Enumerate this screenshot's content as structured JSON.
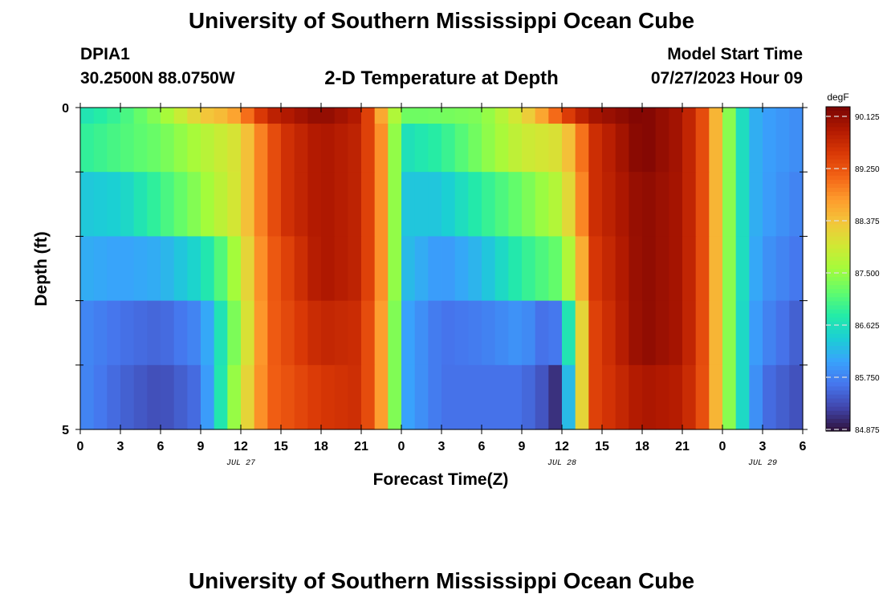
{
  "page": {
    "title": "University of Southern Mississippi Ocean Cube",
    "station_id": "DPIA1",
    "coordinates": "30.2500N  88.0750W",
    "plot_title": "2-D Temperature at Depth",
    "model_start_label": "Model Start Time",
    "model_start_value": "07/27/2023 Hour 09",
    "bottom_title": "University of Southern Mississippi Ocean Cube"
  },
  "chart_data": {
    "type": "heatmap",
    "title": "2-D Temperature at Depth",
    "xlabel": "Forecast Time(Z)",
    "ylabel": "Depth (ft)",
    "x_range_hours": [
      0,
      54
    ],
    "x_tick_labels": [
      "0",
      "3",
      "6",
      "9",
      "12",
      "15",
      "18",
      "21",
      "0",
      "3",
      "6",
      "9",
      "12",
      "15",
      "18",
      "21",
      "0",
      "3",
      "6"
    ],
    "date_labels": [
      {
        "label": "JUL 27",
        "hour": 12
      },
      {
        "label": "JUL 28",
        "hour": 36
      },
      {
        "label": "JUL 29",
        "hour": 51
      }
    ],
    "y_range_ft": [
      0,
      5
    ],
    "y_tick_labels": [
      "0",
      "5"
    ],
    "colorbar": {
      "unit": "degF",
      "min": 84.875,
      "max": 90.125,
      "tick_labels": [
        "90.125",
        "89.250",
        "88.375",
        "87.500",
        "86.625",
        "85.750",
        "84.875"
      ],
      "colors": [
        "#30123b",
        "#4145ab",
        "#4675ed",
        "#39a2fc",
        "#1bcfd4",
        "#24eca6",
        "#61fc6c",
        "#a4fc3b",
        "#d1e834",
        "#f3c63a",
        "#fe9b2d",
        "#f36315",
        "#d93806",
        "#b11901",
        "#7a0403"
      ]
    },
    "depth_layers_ft": [
      0,
      0.5,
      1.5,
      2.5,
      3.5,
      4.5
    ],
    "series": [
      {
        "name": "0 ft",
        "knots": [
          [
            0,
            86.6
          ],
          [
            3,
            86.9
          ],
          [
            6,
            87.4
          ],
          [
            9,
            88.2
          ],
          [
            11,
            88.4
          ],
          [
            12,
            88.7
          ],
          [
            14,
            89.6
          ],
          [
            18,
            90.0
          ],
          [
            21,
            89.7
          ],
          [
            22.5,
            88.5
          ],
          [
            23.5,
            87.6
          ],
          [
            24.5,
            87.2
          ],
          [
            26,
            87.2
          ],
          [
            30,
            87.3
          ],
          [
            33,
            88.0
          ],
          [
            35,
            88.7
          ],
          [
            36,
            89.2
          ],
          [
            38,
            89.8
          ],
          [
            42,
            90.1
          ],
          [
            45,
            89.8
          ],
          [
            47,
            89.0
          ],
          [
            48,
            87.8
          ],
          [
            49,
            86.9
          ],
          [
            50,
            86.2
          ],
          [
            51,
            86.0
          ],
          [
            54,
            85.8
          ]
        ]
      },
      {
        "name": "0.5 ft",
        "knots": [
          [
            0,
            86.8
          ],
          [
            3,
            87.0
          ],
          [
            6,
            87.2
          ],
          [
            9,
            87.6
          ],
          [
            12,
            88.0
          ],
          [
            13,
            88.6
          ],
          [
            15,
            89.4
          ],
          [
            18,
            89.8
          ],
          [
            21,
            89.6
          ],
          [
            22.5,
            88.7
          ],
          [
            23.5,
            87.4
          ],
          [
            24.5,
            86.6
          ],
          [
            27,
            86.8
          ],
          [
            30,
            87.3
          ],
          [
            33,
            87.8
          ],
          [
            36,
            88.0
          ],
          [
            37,
            88.6
          ],
          [
            38.5,
            89.5
          ],
          [
            42,
            90.1
          ],
          [
            45,
            89.8
          ],
          [
            47,
            89.0
          ],
          [
            48,
            87.8
          ],
          [
            49,
            86.9
          ],
          [
            50,
            86.2
          ],
          [
            51,
            86.0
          ],
          [
            54,
            85.8
          ]
        ]
      },
      {
        "name": "1.5 ft",
        "knots": [
          [
            0,
            86.3
          ],
          [
            3,
            86.4
          ],
          [
            6,
            86.9
          ],
          [
            9,
            87.4
          ],
          [
            12,
            88.0
          ],
          [
            13,
            88.6
          ],
          [
            15,
            89.4
          ],
          [
            18,
            89.8
          ],
          [
            21,
            89.6
          ],
          [
            22.5,
            88.7
          ],
          [
            23.5,
            87.4
          ],
          [
            24.5,
            86.3
          ],
          [
            27,
            86.3
          ],
          [
            30,
            86.8
          ],
          [
            33,
            87.2
          ],
          [
            36,
            87.7
          ],
          [
            37,
            88.4
          ],
          [
            38.5,
            89.5
          ],
          [
            42,
            90.0
          ],
          [
            45,
            89.8
          ],
          [
            47,
            89.0
          ],
          [
            48,
            87.8
          ],
          [
            49,
            86.9
          ],
          [
            50,
            86.2
          ],
          [
            51,
            86.0
          ],
          [
            54,
            85.7
          ]
        ]
      },
      {
        "name": "2.5 ft",
        "knots": [
          [
            0,
            86.1
          ],
          [
            3,
            86.0
          ],
          [
            6,
            86.1
          ],
          [
            9,
            86.5
          ],
          [
            11,
            87.2
          ],
          [
            12,
            87.8
          ],
          [
            14,
            89.0
          ],
          [
            18,
            89.8
          ],
          [
            21,
            89.6
          ],
          [
            22.5,
            88.7
          ],
          [
            23.5,
            87.4
          ],
          [
            24.5,
            86.2
          ],
          [
            27,
            85.9
          ],
          [
            30,
            86.2
          ],
          [
            33,
            86.8
          ],
          [
            36,
            87.2
          ],
          [
            37,
            88.0
          ],
          [
            38.5,
            89.4
          ],
          [
            42,
            90.0
          ],
          [
            45,
            89.8
          ],
          [
            47,
            89.0
          ],
          [
            48,
            87.8
          ],
          [
            49,
            86.9
          ],
          [
            50,
            86.2
          ],
          [
            51,
            85.9
          ],
          [
            54,
            85.6
          ]
        ]
      },
      {
        "name": "3.5 ft",
        "knots": [
          [
            0,
            85.8
          ],
          [
            3,
            85.6
          ],
          [
            6,
            85.5
          ],
          [
            9,
            85.8
          ],
          [
            10,
            86.3
          ],
          [
            12,
            87.6
          ],
          [
            14,
            89.0
          ],
          [
            18,
            89.6
          ],
          [
            21,
            89.5
          ],
          [
            22.5,
            88.6
          ],
          [
            23.5,
            87.3
          ],
          [
            24.5,
            86.0
          ],
          [
            27,
            85.6
          ],
          [
            30,
            85.7
          ],
          [
            33,
            85.9
          ],
          [
            35,
            85.5
          ],
          [
            36,
            85.8
          ],
          [
            37,
            87.5
          ],
          [
            38.5,
            89.3
          ],
          [
            42,
            90.0
          ],
          [
            45,
            89.8
          ],
          [
            47,
            89.0
          ],
          [
            48,
            87.8
          ],
          [
            49,
            86.9
          ],
          [
            50,
            86.1
          ],
          [
            51,
            85.8
          ],
          [
            54,
            85.4
          ]
        ]
      },
      {
        "name": "4.5 ft",
        "knots": [
          [
            0,
            85.8
          ],
          [
            3,
            85.5
          ],
          [
            6,
            85.3
          ],
          [
            9,
            85.6
          ],
          [
            10,
            86.3
          ],
          [
            12,
            87.8
          ],
          [
            14,
            89.0
          ],
          [
            18,
            89.4
          ],
          [
            21,
            89.5
          ],
          [
            22.5,
            88.6
          ],
          [
            23.5,
            87.3
          ],
          [
            24.5,
            86.0
          ],
          [
            27,
            85.6
          ],
          [
            30,
            85.6
          ],
          [
            33,
            85.6
          ],
          [
            35,
            85.3
          ],
          [
            36,
            84.9
          ],
          [
            37,
            87.5
          ],
          [
            38.5,
            89.3
          ],
          [
            42,
            89.8
          ],
          [
            45,
            89.7
          ],
          [
            47,
            89.0
          ],
          [
            48,
            87.8
          ],
          [
            49,
            86.9
          ],
          [
            50,
            86.1
          ],
          [
            51,
            85.6
          ],
          [
            54,
            85.3
          ]
        ]
      }
    ]
  }
}
